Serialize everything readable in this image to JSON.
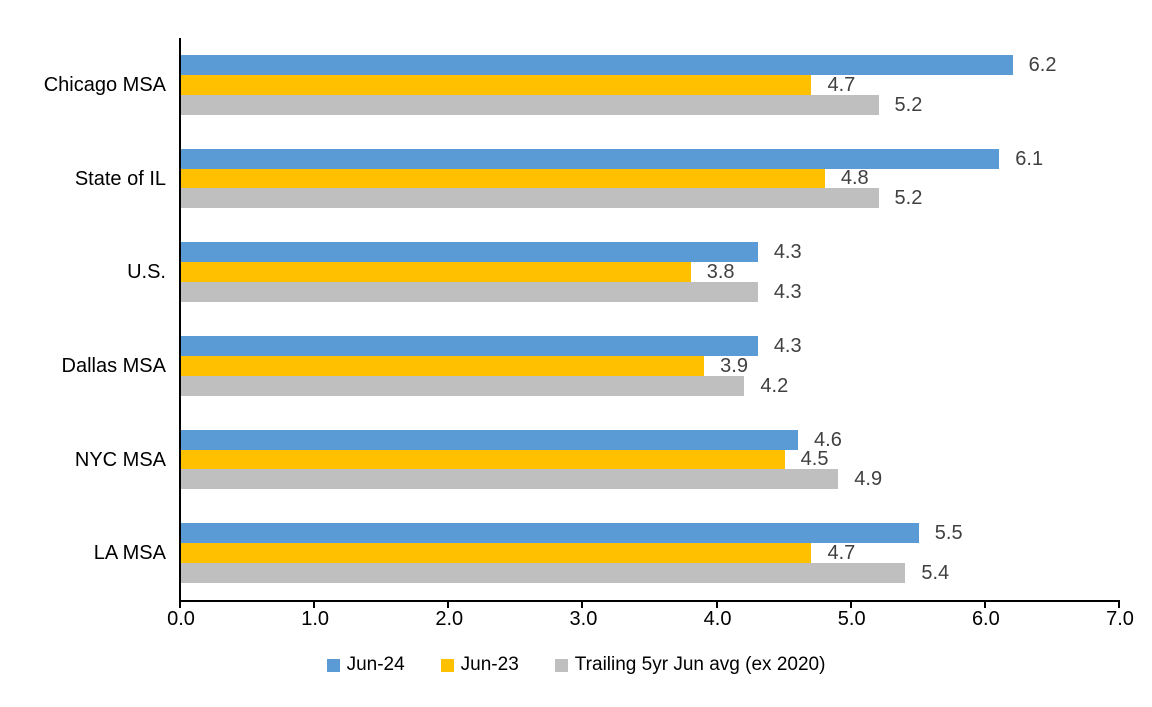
{
  "chart_data": {
    "type": "bar",
    "orientation": "horizontal",
    "title": "",
    "categories": [
      "Chicago MSA",
      "State of IL",
      "U.S.",
      "Dallas MSA",
      "NYC MSA",
      "LA MSA"
    ],
    "series": [
      {
        "name": "Jun-24",
        "color": "#5B9BD5",
        "values": [
          6.2,
          6.1,
          4.3,
          4.3,
          4.6,
          5.5
        ]
      },
      {
        "name": "Jun-23",
        "color": "#FFC000",
        "values": [
          4.7,
          4.8,
          3.8,
          3.9,
          4.5,
          4.7
        ]
      },
      {
        "name": "Trailing 5yr Jun avg (ex 2020)",
        "color": "#BFBFBF",
        "values": [
          5.2,
          5.2,
          4.3,
          4.2,
          4.9,
          5.4
        ]
      }
    ],
    "xlim": [
      0,
      7
    ],
    "xticks": [
      "0.0",
      "1.0",
      "2.0",
      "3.0",
      "4.0",
      "5.0",
      "6.0",
      "7.0"
    ],
    "grid": false,
    "legend_position": "bottom",
    "data_labels": true,
    "axis_color": "#000000",
    "data_label_color": "#404040"
  }
}
